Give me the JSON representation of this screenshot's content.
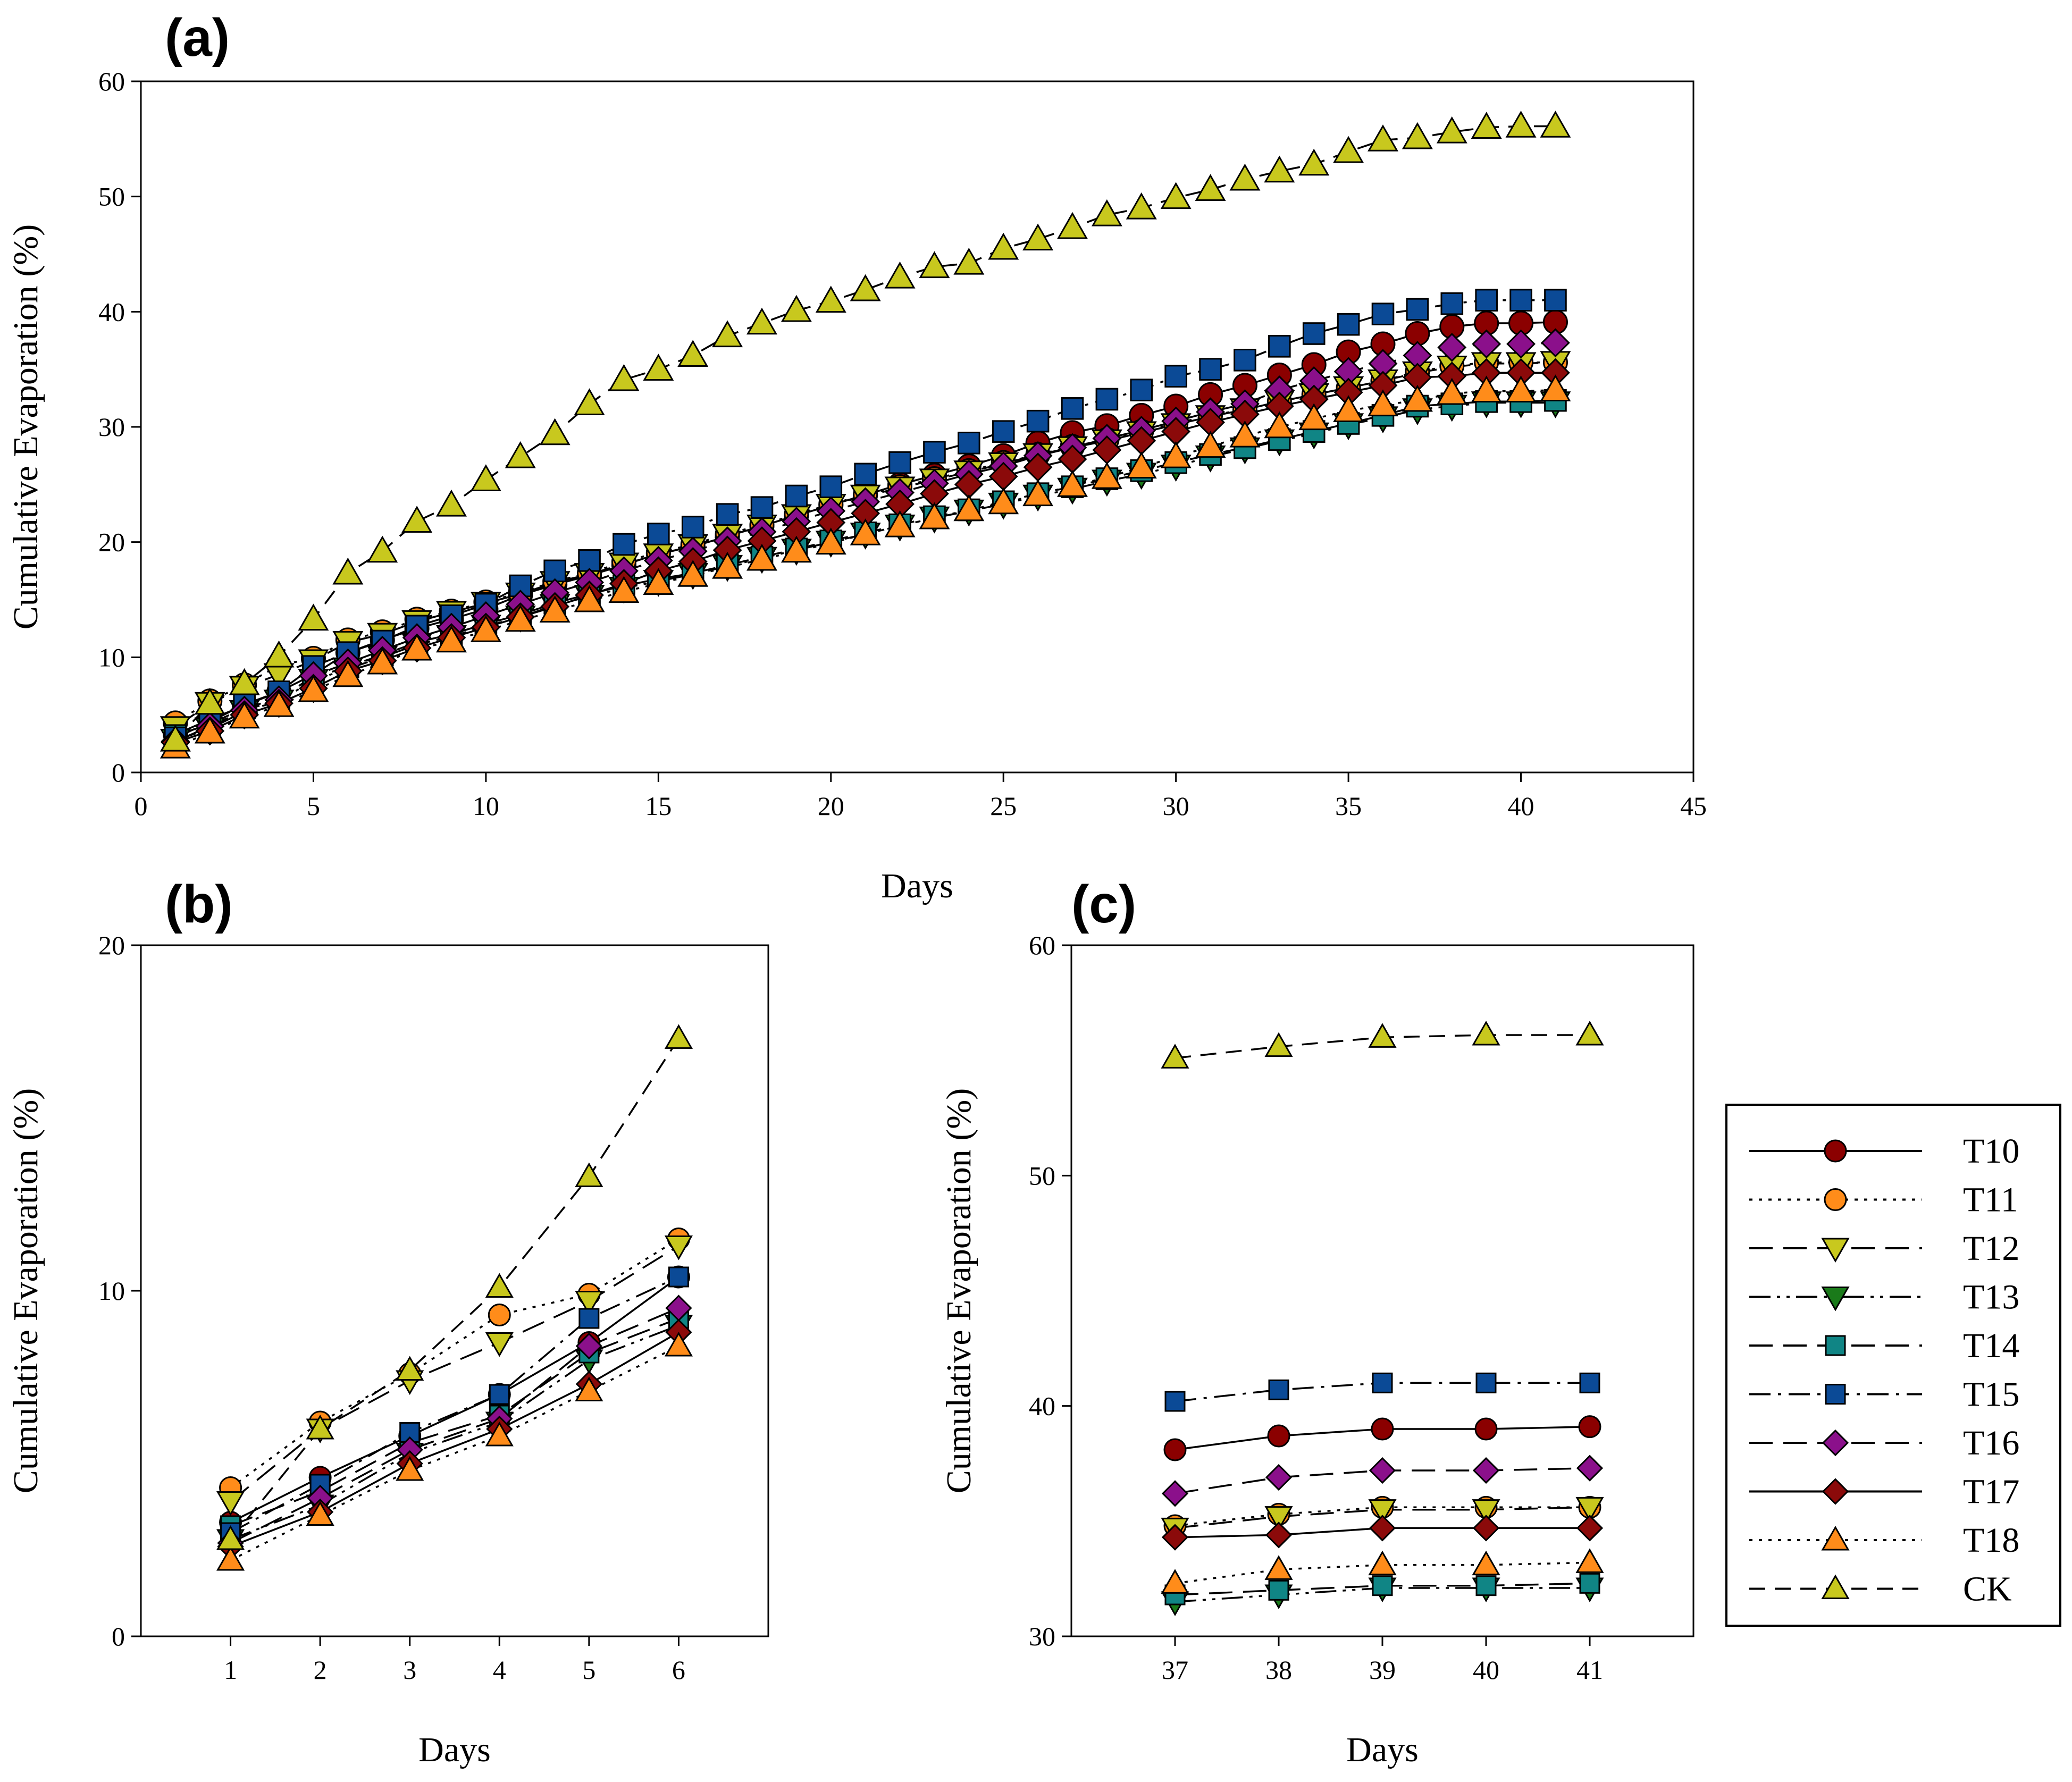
{
  "series_styles": [
    {
      "name": "T10",
      "color": "#8B0000",
      "marker": "circle",
      "dash": ""
    },
    {
      "name": "T11",
      "color": "#FF8C1A",
      "marker": "circle",
      "dash": "dot"
    },
    {
      "name": "T12",
      "color": "#C8C81E",
      "marker": "tri-down",
      "dash": "longdash"
    },
    {
      "name": "T13",
      "color": "#1A7A1A",
      "marker": "tri-down",
      "dash": "dashdotdot"
    },
    {
      "name": "T14",
      "color": "#108585",
      "marker": "square",
      "dash": "longdash"
    },
    {
      "name": "T15",
      "color": "#0B4A96",
      "marker": "square",
      "dash": "dashdot"
    },
    {
      "name": "T16",
      "color": "#8B108B",
      "marker": "diamond",
      "dash": "longdash"
    },
    {
      "name": "T17",
      "color": "#8B0A0A",
      "marker": "diamond",
      "dash": ""
    },
    {
      "name": "T18",
      "color": "#FF8C1A",
      "marker": "tri-up",
      "dash": "dot"
    },
    {
      "name": "CK",
      "color": "#C8C81E",
      "marker": "tri-up",
      "dash": "dash"
    }
  ],
  "legend": {
    "position": "right",
    "entries": [
      "T10",
      "T11",
      "T12",
      "T13",
      "T14",
      "T15",
      "T16",
      "T17",
      "T18",
      "CK"
    ]
  },
  "chart_data": [
    {
      "panel_label": "(a)",
      "type": "line",
      "xlabel": "Days",
      "ylabel": "Cumulative Evaporation (%)",
      "xlim": [
        0,
        45
      ],
      "ylim": [
        0,
        60
      ],
      "xticks": [
        "0",
        "5",
        "10",
        "15",
        "20",
        "25",
        "30",
        "35",
        "40",
        "45"
      ],
      "yticks": [
        "0",
        "10",
        "20",
        "30",
        "40",
        "50",
        "60"
      ],
      "x": [
        1,
        2,
        3,
        4,
        5,
        6,
        7,
        8,
        9,
        10,
        11,
        12,
        13,
        14,
        15,
        16,
        17,
        18,
        19,
        20,
        21,
        22,
        23,
        24,
        25,
        26,
        27,
        28,
        29,
        30,
        31,
        32,
        33,
        34,
        35,
        36,
        37,
        38,
        39,
        40,
        41
      ],
      "series": [
        {
          "name": "T10",
          "values": [
            3.3,
            4.6,
            5.8,
            7.0,
            8.5,
            10.4,
            11.5,
            12.5,
            13.3,
            14.2,
            15.4,
            16.3,
            17.1,
            18.0,
            19.0,
            19.6,
            20.5,
            21.4,
            22.3,
            23.2,
            24.1,
            25.0,
            25.8,
            26.6,
            27.5,
            28.6,
            29.5,
            30.1,
            31.0,
            31.8,
            32.8,
            33.6,
            34.5,
            35.4,
            36.5,
            37.2,
            38.1,
            38.7,
            39.0,
            39.0,
            39.1
          ]
        },
        {
          "name": "T11",
          "values": [
            4.3,
            6.2,
            7.6,
            9.3,
            9.9,
            11.5,
            12.2,
            13.3,
            14.0,
            14.8,
            15.6,
            16.6,
            17.3,
            18.3,
            19.1,
            19.8,
            20.7,
            21.5,
            22.4,
            23.3,
            24.1,
            24.8,
            25.5,
            26.2,
            26.9,
            27.6,
            28.3,
            28.9,
            29.6,
            30.3,
            31.0,
            31.5,
            32.2,
            32.8,
            33.4,
            34.0,
            34.8,
            35.3,
            35.6,
            35.6,
            35.6
          ]
        },
        {
          "name": "T12",
          "values": [
            3.9,
            6.0,
            7.4,
            8.5,
            9.7,
            11.3,
            12.0,
            13.1,
            13.9,
            14.7,
            15.5,
            16.5,
            17.2,
            18.1,
            18.9,
            19.7,
            20.6,
            21.4,
            22.3,
            23.2,
            24.0,
            24.7,
            25.4,
            26.1,
            26.8,
            27.6,
            28.2,
            28.8,
            29.5,
            30.2,
            30.9,
            31.5,
            32.2,
            32.8,
            33.4,
            34.0,
            34.7,
            35.2,
            35.5,
            35.5,
            35.6
          ]
        },
        {
          "name": "T13",
          "values": [
            2.8,
            3.8,
            5.3,
            6.2,
            8.0,
            9.0,
            10.0,
            11.1,
            11.8,
            12.7,
            13.5,
            14.5,
            15.3,
            16.0,
            16.6,
            17.2,
            17.9,
            18.6,
            19.3,
            20.0,
            20.7,
            21.4,
            22.1,
            22.7,
            23.3,
            24.0,
            24.6,
            25.3,
            25.9,
            26.6,
            27.4,
            28.1,
            28.8,
            29.4,
            30.2,
            30.8,
            31.5,
            31.8,
            32.1,
            32.1,
            32.1
          ]
        },
        {
          "name": "T14",
          "values": [
            3.2,
            4.2,
            5.6,
            6.4,
            8.2,
            9.2,
            10.2,
            11.3,
            12.0,
            12.9,
            13.7,
            14.7,
            15.5,
            16.2,
            16.8,
            17.3,
            18.0,
            18.7,
            19.4,
            20.1,
            20.8,
            21.5,
            22.2,
            22.8,
            23.5,
            24.2,
            24.8,
            25.5,
            26.2,
            26.9,
            27.6,
            28.2,
            28.9,
            29.6,
            30.3,
            31.0,
            31.8,
            32.0,
            32.2,
            32.2,
            32.3
          ]
        },
        {
          "name": "T15",
          "values": [
            3.0,
            4.4,
            5.9,
            7.0,
            9.2,
            10.4,
            11.4,
            12.7,
            13.6,
            14.6,
            16.2,
            17.5,
            18.4,
            19.8,
            20.7,
            21.3,
            22.4,
            23.0,
            24.0,
            24.8,
            25.9,
            26.9,
            27.8,
            28.6,
            29.6,
            30.5,
            31.6,
            32.4,
            33.2,
            34.4,
            35.0,
            35.8,
            37.0,
            38.1,
            38.9,
            39.8,
            40.2,
            40.7,
            41.0,
            41.0,
            41.0
          ]
        },
        {
          "name": "T16",
          "values": [
            2.7,
            4.0,
            5.4,
            6.3,
            8.4,
            9.5,
            10.6,
            11.7,
            12.6,
            13.6,
            14.6,
            15.6,
            16.5,
            17.5,
            18.4,
            19.2,
            20.1,
            20.9,
            21.8,
            22.7,
            23.5,
            24.3,
            25.1,
            25.9,
            26.6,
            27.5,
            28.2,
            29.0,
            29.7,
            30.5,
            31.3,
            32.0,
            33.2,
            34.0,
            34.8,
            35.5,
            36.2,
            36.9,
            37.2,
            37.2,
            37.3
          ]
        },
        {
          "name": "T17",
          "values": [
            2.6,
            3.6,
            5.0,
            6.0,
            7.3,
            8.8,
            9.7,
            10.8,
            11.7,
            12.6,
            13.5,
            14.4,
            15.4,
            16.4,
            17.5,
            18.3,
            19.3,
            20.1,
            20.9,
            21.7,
            22.5,
            23.3,
            24.2,
            25.0,
            25.7,
            26.5,
            27.2,
            28.0,
            28.8,
            29.6,
            30.4,
            31.1,
            31.8,
            32.4,
            33.0,
            33.6,
            34.3,
            34.4,
            34.7,
            34.7,
            34.7
          ]
        },
        {
          "name": "T18",
          "values": [
            2.2,
            3.5,
            4.8,
            5.8,
            7.1,
            8.4,
            9.5,
            10.7,
            11.4,
            12.3,
            13.2,
            14.0,
            14.9,
            15.7,
            16.4,
            17.1,
            17.8,
            18.5,
            19.2,
            19.9,
            20.7,
            21.4,
            22.1,
            22.8,
            23.4,
            24.1,
            24.9,
            25.6,
            26.5,
            27.4,
            28.3,
            29.2,
            30.0,
            30.7,
            31.4,
            31.9,
            32.3,
            32.9,
            33.1,
            33.1,
            33.2
          ]
        },
        {
          "name": "CK",
          "values": [
            2.8,
            6.0,
            7.7,
            10.1,
            13.3,
            17.3,
            19.2,
            21.8,
            23.2,
            25.4,
            27.4,
            29.4,
            32.0,
            34.1,
            35.0,
            36.2,
            37.9,
            39.0,
            40.1,
            40.9,
            41.9,
            43.0,
            43.9,
            44.2,
            45.5,
            46.3,
            47.3,
            48.4,
            49.0,
            49.9,
            50.6,
            51.5,
            52.2,
            52.8,
            53.9,
            54.9,
            55.1,
            55.6,
            56.0,
            56.1,
            56.1
          ]
        }
      ]
    },
    {
      "panel_label": "(b)",
      "type": "line",
      "xlabel": "Days",
      "ylabel": "Cumulative Evaporation (%)",
      "xlim": [
        0,
        7
      ],
      "ylim": [
        0,
        20
      ],
      "xticks": [
        "1",
        "2",
        "3",
        "4",
        "5",
        "6"
      ],
      "yticks": [
        "0",
        "10",
        "20"
      ],
      "x": [
        1,
        2,
        3,
        4,
        5,
        6
      ],
      "series": [
        {
          "name": "T10",
          "values": [
            3.3,
            4.6,
            5.8,
            7.0,
            8.5,
            10.4
          ]
        },
        {
          "name": "T11",
          "values": [
            4.3,
            6.2,
            7.6,
            9.3,
            9.9,
            11.5
          ]
        },
        {
          "name": "T12",
          "values": [
            3.9,
            6.0,
            7.4,
            8.5,
            9.7,
            11.3
          ]
        },
        {
          "name": "T13",
          "values": [
            2.8,
            3.8,
            5.3,
            6.2,
            8.0,
            9.0
          ]
        },
        {
          "name": "T14",
          "values": [
            3.2,
            4.2,
            5.6,
            6.4,
            8.2,
            9.2
          ]
        },
        {
          "name": "T15",
          "values": [
            3.0,
            4.4,
            5.9,
            7.0,
            9.2,
            10.4
          ]
        },
        {
          "name": "T16",
          "values": [
            2.7,
            4.0,
            5.4,
            6.3,
            8.4,
            9.5
          ]
        },
        {
          "name": "T17",
          "values": [
            2.6,
            3.6,
            5.0,
            6.0,
            7.3,
            8.8
          ]
        },
        {
          "name": "T18",
          "values": [
            2.2,
            3.5,
            4.8,
            5.8,
            7.1,
            8.4
          ]
        },
        {
          "name": "CK",
          "values": [
            2.8,
            6.0,
            7.7,
            10.1,
            13.3,
            17.3
          ]
        }
      ]
    },
    {
      "panel_label": "(c)",
      "type": "line",
      "xlabel": "Days",
      "ylabel": "Cumulative Evaporation (%)",
      "xlim": [
        36,
        42
      ],
      "ylim": [
        30,
        60
      ],
      "xticks": [
        "37",
        "38",
        "39",
        "40",
        "41"
      ],
      "yticks": [
        "30",
        "40",
        "50",
        "60"
      ],
      "x": [
        37,
        38,
        39,
        40,
        41
      ],
      "series": [
        {
          "name": "T10",
          "values": [
            38.1,
            38.7,
            39.0,
            39.0,
            39.1
          ]
        },
        {
          "name": "T11",
          "values": [
            34.8,
            35.3,
            35.6,
            35.6,
            35.6
          ]
        },
        {
          "name": "T12",
          "values": [
            34.7,
            35.2,
            35.5,
            35.5,
            35.6
          ]
        },
        {
          "name": "T13",
          "values": [
            31.5,
            31.8,
            32.1,
            32.1,
            32.1
          ]
        },
        {
          "name": "T14",
          "values": [
            31.8,
            32.0,
            32.2,
            32.2,
            32.3
          ]
        },
        {
          "name": "T15",
          "values": [
            40.2,
            40.7,
            41.0,
            41.0,
            41.0
          ]
        },
        {
          "name": "T16",
          "values": [
            36.2,
            36.9,
            37.2,
            37.2,
            37.3
          ]
        },
        {
          "name": "T17",
          "values": [
            34.3,
            34.4,
            34.7,
            34.7,
            34.7
          ]
        },
        {
          "name": "T18",
          "values": [
            32.3,
            32.9,
            33.1,
            33.1,
            33.2
          ]
        },
        {
          "name": "CK",
          "values": [
            55.1,
            55.6,
            56.0,
            56.1,
            56.1
          ]
        }
      ]
    }
  ]
}
